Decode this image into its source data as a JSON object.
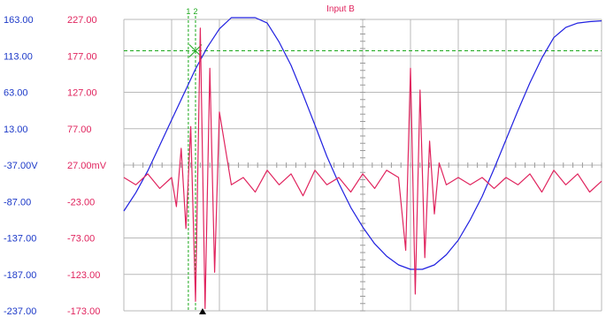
{
  "chart_data": {
    "type": "line",
    "title": "Input B",
    "x_divisions": 10,
    "left_axis": {
      "unit": "V",
      "ylim": [
        -237,
        163
      ],
      "ticks": [
        "163.00",
        "113.00",
        "63.00",
        "13.00",
        "-37.00V",
        "-87.00",
        "-137.00",
        "-187.00",
        "-237.00"
      ],
      "color": "#1c39c8"
    },
    "right_axis": {
      "unit": "mV",
      "ylim": [
        -173,
        227
      ],
      "ticks": [
        "227.00",
        "177.00",
        "127.00",
        "77.00",
        "27.00mV",
        "-23.00",
        "-73.00",
        "-123.00",
        "-173.00"
      ],
      "color": "#e0245e"
    },
    "series": [
      {
        "axis": "left",
        "color": "#2020e0",
        "x": [
          0,
          0.25,
          0.5,
          0.75,
          1,
          1.25,
          1.5,
          1.75,
          2,
          2.25,
          2.5,
          2.75,
          3,
          3.25,
          3.5,
          3.75,
          4,
          4.25,
          4.5,
          4.75,
          5,
          5.25,
          5.5,
          5.75,
          6,
          6.25,
          6.5,
          6.75,
          7,
          7.25,
          7.5,
          7.75,
          8,
          8.25,
          8.5,
          8.75,
          9,
          9.25,
          9.5,
          9.75,
          10
        ],
        "values": [
          -100,
          -75,
          -45,
          -10,
          25,
          60,
          95,
          125,
          150,
          168,
          176,
          172,
          158,
          132,
          100,
          60,
          18,
          -25,
          -62,
          -95,
          -122,
          -145,
          -162,
          -174,
          -180,
          -180,
          -174,
          -160,
          -140,
          -112,
          -80,
          -42,
          -2,
          38,
          76,
          110,
          138,
          152,
          158,
          160,
          161
        ]
      },
      {
        "axis": "right",
        "color": "#e0245e",
        "x": [
          0,
          0.25,
          0.5,
          0.75,
          1.0,
          1.1,
          1.2,
          1.3,
          1.4,
          1.5,
          1.6,
          1.7,
          1.8,
          1.9,
          2.0,
          2.25,
          2.5,
          2.75,
          3.0,
          3.25,
          3.5,
          3.75,
          4.0,
          4.25,
          4.5,
          4.75,
          5.0,
          5.25,
          5.5,
          5.75,
          5.9,
          6.0,
          6.1,
          6.2,
          6.3,
          6.4,
          6.5,
          6.6,
          6.75,
          7.0,
          7.25,
          7.5,
          7.75,
          8.0,
          8.25,
          8.5,
          8.75,
          9.0,
          9.25,
          9.5,
          9.75,
          10
        ],
        "values": [
          10,
          0,
          15,
          -5,
          10,
          -30,
          50,
          -60,
          80,
          -160,
          215,
          -170,
          160,
          -120,
          100,
          0,
          10,
          -10,
          20,
          0,
          15,
          -15,
          20,
          0,
          10,
          -10,
          15,
          -5,
          20,
          10,
          -90,
          160,
          -150,
          130,
          -100,
          60,
          -40,
          30,
          0,
          10,
          0,
          10,
          -5,
          10,
          0,
          15,
          -10,
          20,
          0,
          15,
          -10,
          5
        ]
      }
    ],
    "cursors": [
      {
        "label": "1",
        "color": "#1aa81a",
        "x": 1.35
      },
      {
        "label": "2",
        "color": "#1aa81a",
        "x": 1.5
      }
    ],
    "reference_line": {
      "axis": "left",
      "value": 120,
      "color": "#1aa81a",
      "style": "dashed"
    },
    "grid": true
  }
}
